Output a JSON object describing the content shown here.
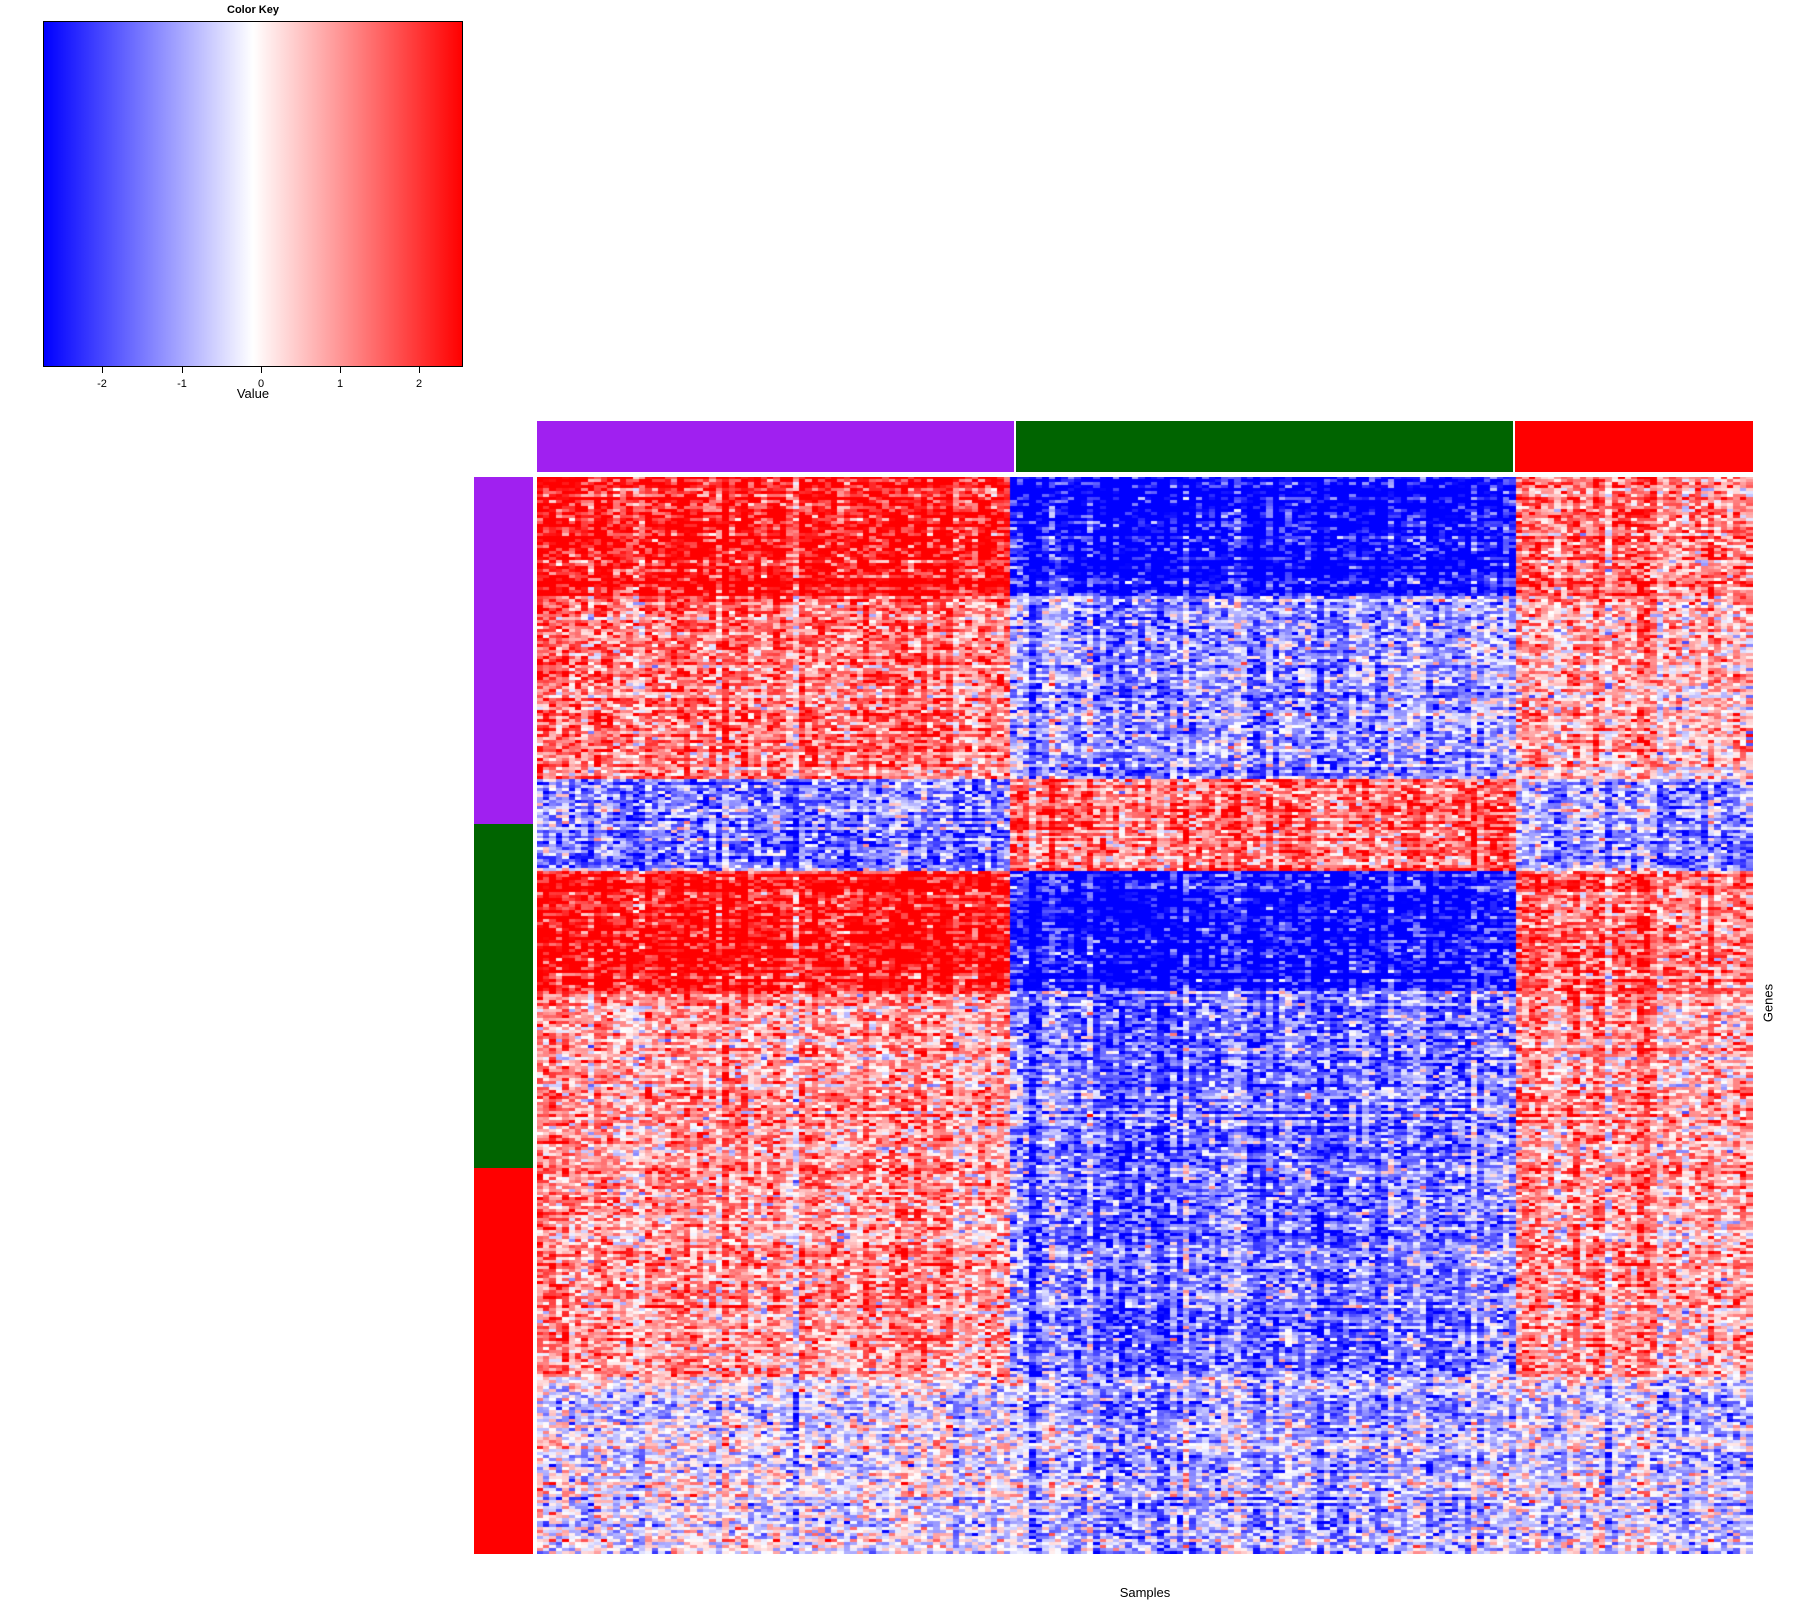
{
  "chart_data": {
    "type": "heatmap",
    "title": "",
    "xlabel": "Samples",
    "ylabel": "Genes",
    "color_key": {
      "title": "Color Key",
      "label": "Value",
      "ticks": [
        "-2",
        "-1",
        "0",
        "1",
        "2"
      ],
      "range": [
        -2.75,
        2.55
      ],
      "colors": [
        "#0000ff",
        "#ffffff",
        "#ff0000"
      ]
    },
    "column_groups": [
      {
        "color": "#a020f0",
        "fraction": 0.392
      },
      {
        "color": "#006400",
        "fraction": 0.411
      },
      {
        "color": "#ff0000",
        "fraction": 0.197
      }
    ],
    "row_groups": [
      {
        "color": "#a020f0",
        "fraction": 0.322
      },
      {
        "color": "#006400",
        "fraction": 0.32
      },
      {
        "color": "#ff0000",
        "fraction": 0.358
      }
    ],
    "n_rows": 360,
    "n_cols": 190,
    "row_blocks": [
      {
        "fraction": 0.11,
        "values": [
          2.2,
          -2.4,
          1.3
        ]
      },
      {
        "fraction": 0.17,
        "values": [
          1.2,
          -0.9,
          0.7
        ]
      },
      {
        "fraction": 0.087,
        "values": [
          -1.1,
          1.4,
          -0.8
        ]
      },
      {
        "fraction": 0.11,
        "values": [
          2.2,
          -2.4,
          1.3
        ]
      },
      {
        "fraction": 0.36,
        "values": [
          0.9,
          -1.2,
          0.9
        ]
      },
      {
        "fraction": 0.083,
        "values": [
          -0.2,
          -0.7,
          -0.4
        ]
      }
    ]
  }
}
